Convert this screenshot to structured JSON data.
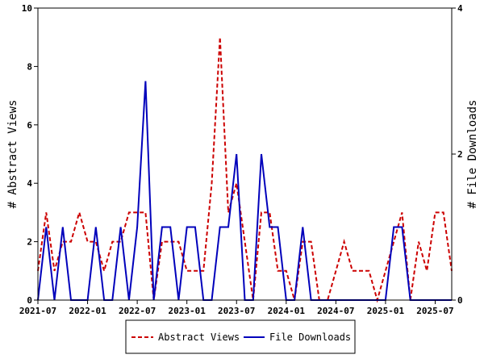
{
  "chart_data": {
    "type": "line",
    "xlabel": "",
    "ylabel_left": "# Abstract Views",
    "ylabel_right": "# File Downloads",
    "x_tick_labels": [
      "2021-07",
      "2022-01",
      "2022-07",
      "2023-01",
      "2023-07",
      "2024-01",
      "2024-07",
      "2025-01",
      "2025-07"
    ],
    "y_left": {
      "min": 0,
      "max": 10,
      "ticks": [
        0,
        2,
        4,
        6,
        8,
        10
      ]
    },
    "y_right": {
      "min": 0,
      "max": 4,
      "ticks": [
        0,
        2,
        4
      ]
    },
    "grid": false,
    "legend_placement": "bottom-center",
    "x": [
      "2021-07",
      "2021-08",
      "2021-09",
      "2021-10",
      "2021-11",
      "2021-12",
      "2022-01",
      "2022-02",
      "2022-03",
      "2022-04",
      "2022-05",
      "2022-06",
      "2022-07",
      "2022-08",
      "2022-09",
      "2022-10",
      "2022-11",
      "2022-12",
      "2023-01",
      "2023-02",
      "2023-03",
      "2023-04",
      "2023-05",
      "2023-06",
      "2023-07",
      "2023-08",
      "2023-09",
      "2023-10",
      "2023-11",
      "2023-12",
      "2024-01",
      "2024-02",
      "2024-03",
      "2024-04",
      "2024-05",
      "2024-06",
      "2024-07",
      "2024-08",
      "2024-09",
      "2024-10",
      "2024-11",
      "2024-12",
      "2025-01",
      "2025-02",
      "2025-03",
      "2025-04",
      "2025-05",
      "2025-06",
      "2025-07",
      "2025-08",
      "2025-09"
    ],
    "series": [
      {
        "name": "Abstract Views",
        "axis": "left",
        "color": "#cc0000",
        "style": "dashed",
        "values": [
          1,
          3,
          1,
          2,
          2,
          3,
          2,
          2,
          1,
          2,
          2,
          3,
          3,
          3,
          0,
          2,
          2,
          2,
          1,
          1,
          1,
          4,
          9,
          3,
          4,
          2,
          0,
          3,
          3,
          1,
          1,
          0,
          2,
          2,
          0,
          0,
          1,
          2,
          1,
          1,
          1,
          0,
          1,
          2,
          3,
          0,
          2,
          1,
          3,
          3,
          1
        ]
      },
      {
        "name": "File Downloads",
        "axis": "right",
        "color": "#0000bb",
        "style": "solid",
        "values": [
          0,
          1,
          0,
          1,
          0,
          0,
          0,
          1,
          0,
          0,
          1,
          0,
          1,
          3,
          0,
          1,
          1,
          0,
          1,
          1,
          0,
          0,
          1,
          1,
          2,
          0,
          0,
          2,
          1,
          1,
          0,
          0,
          1,
          0,
          0,
          0,
          0,
          0,
          0,
          0,
          0,
          0,
          0,
          1,
          1,
          0,
          0,
          0,
          0,
          0,
          0
        ]
      }
    ]
  }
}
